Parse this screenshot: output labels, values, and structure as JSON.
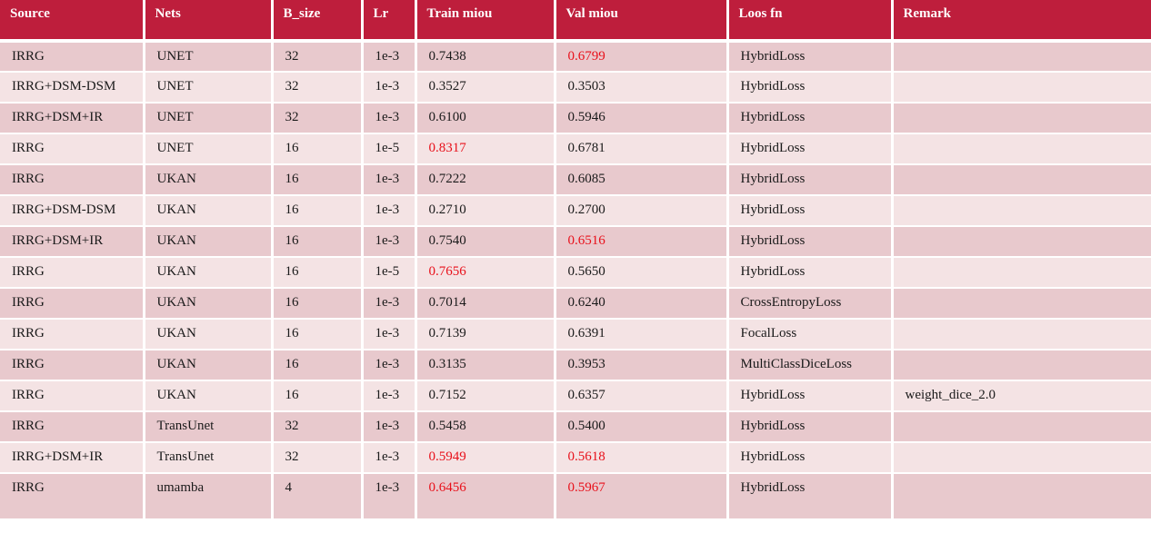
{
  "columns": [
    "Source",
    "Nets",
    "B_size",
    "Lr",
    "Train miou",
    "Val miou",
    "Loos fn",
    "Remark"
  ],
  "highlight_color": "#e8101a",
  "header_color": "#be1e3c",
  "rows": [
    {
      "cells": [
        "IRRG",
        "UNET",
        "32",
        "1e-3",
        "0.7438",
        "0.6799",
        "HybridLoss",
        ""
      ],
      "highlight": [
        5
      ]
    },
    {
      "cells": [
        "IRRG+DSM-DSM",
        "UNET",
        "32",
        "1e-3",
        "0.3527",
        "0.3503",
        "HybridLoss",
        ""
      ],
      "highlight": []
    },
    {
      "cells": [
        "IRRG+DSM+IR",
        "UNET",
        "32",
        "1e-3",
        "0.6100",
        "0.5946",
        "HybridLoss",
        ""
      ],
      "highlight": []
    },
    {
      "cells": [
        "IRRG",
        "UNET",
        "16",
        "1e-5",
        "0.8317",
        "0.6781",
        "HybridLoss",
        ""
      ],
      "highlight": [
        4
      ]
    },
    {
      "cells": [
        "IRRG",
        "UKAN",
        "16",
        "1e-3",
        "0.7222",
        "0.6085",
        "HybridLoss",
        ""
      ],
      "highlight": []
    },
    {
      "cells": [
        "IRRG+DSM-DSM",
        "UKAN",
        "16",
        "1e-3",
        "0.2710",
        "0.2700",
        "HybridLoss",
        ""
      ],
      "highlight": []
    },
    {
      "cells": [
        "IRRG+DSM+IR",
        "UKAN",
        "16",
        "1e-3",
        "0.7540",
        "0.6516",
        "HybridLoss",
        ""
      ],
      "highlight": [
        5
      ]
    },
    {
      "cells": [
        "IRRG",
        "UKAN",
        "16",
        "1e-5",
        "0.7656",
        "0.5650",
        "HybridLoss",
        ""
      ],
      "highlight": [
        4
      ]
    },
    {
      "cells": [
        "IRRG",
        "UKAN",
        "16",
        "1e-3",
        "0.7014",
        "0.6240",
        "CrossEntropyLoss",
        ""
      ],
      "highlight": []
    },
    {
      "cells": [
        "IRRG",
        "UKAN",
        "16",
        "1e-3",
        "0.7139",
        "0.6391",
        "FocalLoss",
        ""
      ],
      "highlight": []
    },
    {
      "cells": [
        "IRRG",
        "UKAN",
        "16",
        "1e-3",
        "0.3135",
        "0.3953",
        "MultiClassDiceLoss",
        ""
      ],
      "highlight": []
    },
    {
      "cells": [
        "IRRG",
        "UKAN",
        "16",
        "1e-3",
        "0.7152",
        "0.6357",
        "HybridLoss",
        "weight_dice_2.0"
      ],
      "highlight": []
    },
    {
      "cells": [
        "IRRG",
        "TransUnet",
        "32",
        "1e-3",
        "0.5458",
        "0.5400",
        "HybridLoss",
        ""
      ],
      "highlight": []
    },
    {
      "cells": [
        "IRRG+DSM+IR",
        "TransUnet",
        "32",
        "1e-3",
        "0.5949",
        "0.5618",
        "HybridLoss",
        ""
      ],
      "highlight": [
        4,
        5
      ]
    },
    {
      "cells": [
        "IRRG",
        "umamba",
        "4",
        "1e-3",
        "0.6456",
        "0.5967",
        "HybridLoss",
        ""
      ],
      "highlight": [
        4,
        5
      ]
    }
  ]
}
